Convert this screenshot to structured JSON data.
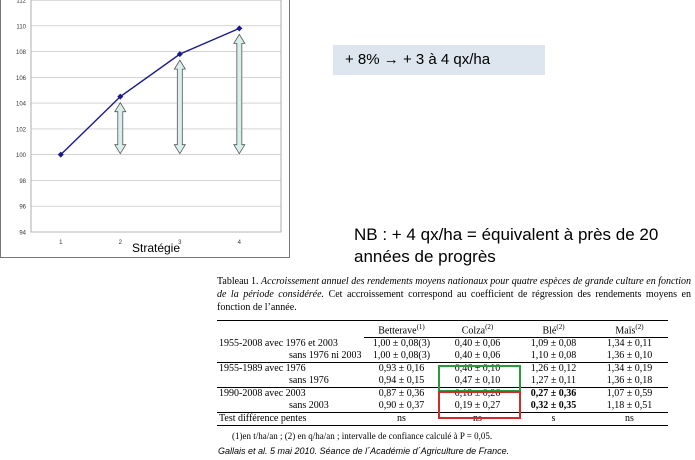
{
  "chart_data": {
    "type": "line",
    "xlabel": "Stratégie",
    "ylabel": "",
    "x": [
      1,
      2,
      3,
      4
    ],
    "xticks": [
      "1",
      "2",
      "3",
      "4"
    ],
    "values": [
      100,
      104.5,
      107.8,
      109.8
    ],
    "ylim": [
      94,
      112
    ],
    "yticks": [
      "94",
      "96",
      "98",
      "100",
      "102",
      "104",
      "106",
      "108",
      "110",
      "112"
    ],
    "grid": true,
    "arrows": [
      {
        "x": 2,
        "from": 100,
        "to": 104.5
      },
      {
        "x": 3,
        "from": 100,
        "to": 107.8
      },
      {
        "x": 4,
        "from": 100,
        "to": 109.8
      }
    ],
    "series_color": "#1a1a8c",
    "arrow_fill": "#d8efec"
  },
  "callout": {
    "text": "+ 8% → + 3 à 4 qx/ha"
  },
  "nb": {
    "text": "NB : + 4 qx/ha = équivalent à près de 20 années de progrès"
  },
  "caption": {
    "lead": "Tableau 1.",
    "italic": "Accroissement annuel des rendements moyens nationaux pour quatre espèces de grande culture en fonction de la période considérée.",
    "rest": "Cet accroissement correspond au coefficient de régression des rendements moyens en fonction de l’année."
  },
  "table": {
    "headers": [
      {
        "name": "Betterave",
        "sup": "(1)"
      },
      {
        "name": "Colza",
        "sup": "(2)"
      },
      {
        "name": "Blé",
        "sup": "(2)"
      },
      {
        "name": "Maïs",
        "sup": "(2)"
      }
    ],
    "rows": [
      {
        "label": "1955-2008 avec 1976 et 2003",
        "sub": false,
        "cells": [
          "1,00 ± 0,08(3)",
          "0,40 ± 0,06",
          "1,09 ± 0,08",
          "1,34 ± 0,11"
        ]
      },
      {
        "label": "sans 1976 ni 2003",
        "sub": true,
        "cells": [
          "1,00 ± 0,08(3)",
          "0,40 ± 0,06",
          "1,10 ± 0,08",
          "1,36 ± 0,10"
        ]
      },
      {
        "label": "1955-1989 avec 1976",
        "sub": false,
        "cells": [
          "0,93 ± 0,16",
          "0,46 ± 0,10",
          "1,26 ± 0,12",
          "1,34 ± 0,19"
        ]
      },
      {
        "label": "sans 1976",
        "sub": true,
        "cells": [
          "0,94 ± 0,15",
          "0,47 ± 0,10",
          "1,27 ± 0,11",
          "1,36 ± 0,18"
        ]
      },
      {
        "label": "1990-2008 avec 2003",
        "sub": false,
        "cells": [
          "0,87 ± 0,36",
          "0,18 ± 0,26",
          "0,27 ± 0,36",
          "1,07 ± 0,59"
        ]
      },
      {
        "label": "sans 2003",
        "sub": true,
        "cells": [
          "0,90 ± 0,37",
          "0,19 ± 0,27",
          "0,32 ± 0,35",
          "1,18 ± 0,51"
        ]
      },
      {
        "label": "Test différence pentes",
        "sub": false,
        "cells": [
          "ns",
          "ns",
          "s",
          "ns"
        ]
      }
    ]
  },
  "footnote": {
    "text": "(1)en t/ha/an ; (2) en q/ha/an ; intervalle de confiance calculé à P = 0,05."
  },
  "source": {
    "text": "Gallais et al. 5 mai 2010. Séance de l´Académie d´Agriculture de France."
  }
}
